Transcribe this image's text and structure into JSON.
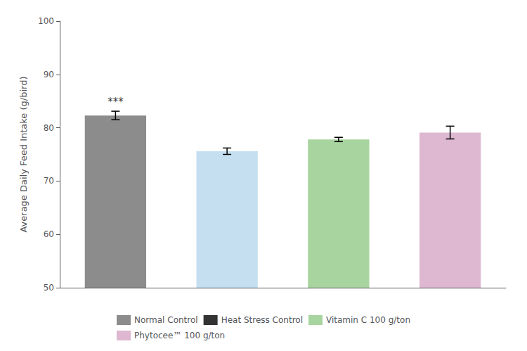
{
  "chart_data": {
    "type": "bar",
    "categories": [
      "Normal Control",
      "Heat Stress Control",
      "Vitamin C 100 g/ton",
      "Phytocee™ 100 g/ton"
    ],
    "values": [
      82.3,
      75.6,
      77.8,
      79.1
    ],
    "errors": [
      0.8,
      0.6,
      0.4,
      1.2
    ],
    "colors": [
      "#8c8c8c",
      "#c5dff0",
      "#a8d4a0",
      "#ddb8d0"
    ],
    "ylabel": "Average Daily Feed Intake (g/bird)",
    "ylim": [
      50,
      100
    ],
    "yticks": [
      50,
      60,
      70,
      80,
      90,
      100
    ],
    "grid": false,
    "tick_labels": "y",
    "legend": "bottom",
    "legend_entries": [
      {
        "name": "Normal Control",
        "color": "#8c8c8c"
      },
      {
        "name": "Heat Stress Control",
        "color": "#333333"
      },
      {
        "name": "Vitamin C 100 g/ton",
        "color": "#a8d4a0"
      },
      {
        "name": "Phytocee™ 100 g/ton",
        "color": "#ddb8d0"
      }
    ],
    "annotations": [
      {
        "x": "Normal Control",
        "text": "***"
      }
    ]
  }
}
